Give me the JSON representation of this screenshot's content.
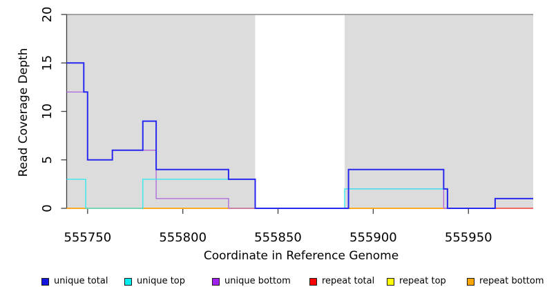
{
  "chart_data": {
    "type": "line",
    "subtype": "step-coverage",
    "title": "",
    "xlabel": "Coordinate in Reference Genome",
    "ylabel": "Read Coverage Depth",
    "xlim": [
      555739,
      555984
    ],
    "ylim": [
      0,
      20
    ],
    "x_ticks": [
      555750,
      555800,
      555850,
      555900,
      555950
    ],
    "y_ticks": [
      0,
      5,
      10,
      15,
      20
    ],
    "grid": "off",
    "background": {
      "plot_fill": "#DCDCDC",
      "masked_white_region": [
        555838,
        555885
      ],
      "top_border_color": "#757575",
      "axis_color": "#3d3d3d"
    },
    "series": [
      {
        "name": "repeat top",
        "color": "#FFFF00",
        "width": 1.2,
        "steps": [
          [
            555739,
            0
          ]
        ],
        "end": 555984
      },
      {
        "name": "repeat total",
        "color": "#F01830",
        "width": 1.2,
        "steps": [
          [
            555739,
            0
          ]
        ],
        "end": 555984
      },
      {
        "name": "repeat bottom",
        "color": "#FFA500",
        "width": 1.5,
        "steps": [
          [
            555739,
            0
          ]
        ],
        "end": 555937
      },
      {
        "name": "unique bottom",
        "color": "#AB63DC",
        "width": 1.3,
        "steps": [
          [
            555739,
            12
          ],
          [
            555750,
            5
          ],
          [
            555763,
            6
          ],
          [
            555786,
            1
          ],
          [
            555824,
            0
          ],
          [
            555887,
            2
          ],
          [
            555937,
            0
          ]
        ],
        "end": 555964
      },
      {
        "name": "unique top",
        "color": "#28E9EE",
        "width": 1.3,
        "steps": [
          [
            555739,
            3
          ],
          [
            555749,
            0
          ],
          [
            555779,
            3
          ],
          [
            555838,
            0
          ],
          [
            555885,
            2
          ],
          [
            555939,
            0
          ],
          [
            555964,
            1
          ]
        ],
        "end": 555984
      },
      {
        "name": "unique total",
        "color": "#2727EF",
        "width": 2,
        "steps": [
          [
            555739,
            15
          ],
          [
            555748,
            12
          ],
          [
            555750,
            5
          ],
          [
            555763,
            6
          ],
          [
            555779,
            9
          ],
          [
            555786,
            4
          ],
          [
            555824,
            3
          ],
          [
            555838,
            0
          ],
          [
            555887,
            4
          ],
          [
            555937,
            2
          ],
          [
            555939,
            0
          ],
          [
            555964,
            1
          ]
        ],
        "end": 555984
      }
    ],
    "legend": [
      {
        "label": "unique total",
        "color": "#1515E0"
      },
      {
        "label": "unique top",
        "color": "#00EEEE"
      },
      {
        "label": "unique bottom",
        "color": "#A020F0"
      },
      {
        "label": "repeat total",
        "color": "#FF0000"
      },
      {
        "label": "repeat top",
        "color": "#FFFF00"
      },
      {
        "label": "repeat bottom",
        "color": "#FFA500"
      }
    ],
    "legend_position": "bottom"
  }
}
